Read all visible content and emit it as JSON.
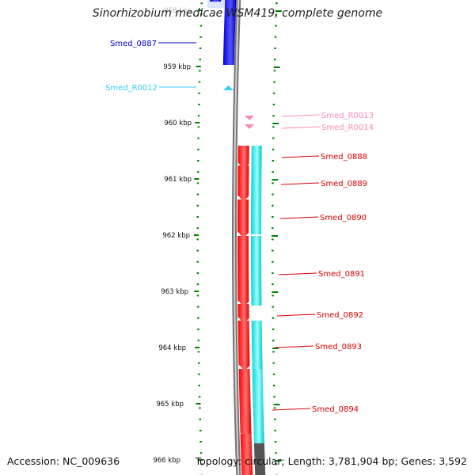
{
  "title": "Sinorhizobium medicae WSM419, complete genome",
  "accession_text": "Accession: NC_009636",
  "topology_text": "Topology: circular; Length: 3,781,904 bp; Genes: 3,592",
  "colors": {
    "forward_cds": "#ff0000",
    "reverse_cds": "#0000ff",
    "forward_rna": "#ff88bb",
    "reverse_rna": "#33ccff",
    "gc_track": "#00dddd",
    "backbone": "#888888",
    "tick": "#008000"
  },
  "kbp_labels": [
    "958 kbp",
    "959 kbp",
    "960 kbp",
    "961 kbp",
    "962 kbp",
    "963 kbp",
    "964 kbp",
    "965 kbp",
    "966 kbp"
  ],
  "gene_labels": [
    {
      "id": "Smed_0887",
      "strand": "reverse",
      "type": "cds"
    },
    {
      "id": "Smed_R0012",
      "strand": "reverse",
      "type": "rna"
    },
    {
      "id": "Smed_R0013",
      "strand": "forward",
      "type": "rna"
    },
    {
      "id": "Smed_R0014",
      "strand": "forward",
      "type": "rna"
    },
    {
      "id": "Smed_0888",
      "strand": "forward",
      "type": "cds"
    },
    {
      "id": "Smed_0889",
      "strand": "forward",
      "type": "cds"
    },
    {
      "id": "Smed_0890",
      "strand": "forward",
      "type": "cds"
    },
    {
      "id": "Smed_0891",
      "strand": "forward",
      "type": "cds"
    },
    {
      "id": "Smed_0892",
      "strand": "forward",
      "type": "cds"
    },
    {
      "id": "Smed_0893",
      "strand": "forward",
      "type": "cds"
    },
    {
      "id": "Smed_0894",
      "strand": "forward",
      "type": "cds"
    }
  ]
}
